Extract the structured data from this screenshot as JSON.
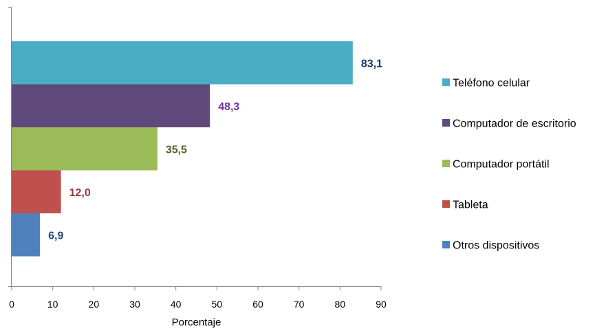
{
  "chart_data": {
    "type": "bar",
    "orientation": "horizontal",
    "categories": [
      "Teléfono celular",
      "Computador de escritorio",
      "Computador portátil",
      "Tableta",
      "Otros dispositivos"
    ],
    "values": [
      83.1,
      48.3,
      35.5,
      12.0,
      6.9
    ],
    "value_labels": [
      "83,1",
      "48,3",
      "35,5",
      "12,0",
      "6,9"
    ],
    "colors": [
      "#4BACC6",
      "#604A7B",
      "#9BBB59",
      "#C0504D",
      "#4F81BD"
    ],
    "label_colors": [
      "#1F3864",
      "#7030A0",
      "#4F6228",
      "#953735",
      "#1F497D"
    ],
    "xlabel": "Porcentaje",
    "ylabel": "",
    "xlim": [
      0,
      90
    ],
    "xticks": [
      0,
      10,
      20,
      30,
      40,
      50,
      60,
      70,
      80,
      90
    ],
    "grid": false,
    "legend_position": "right"
  }
}
